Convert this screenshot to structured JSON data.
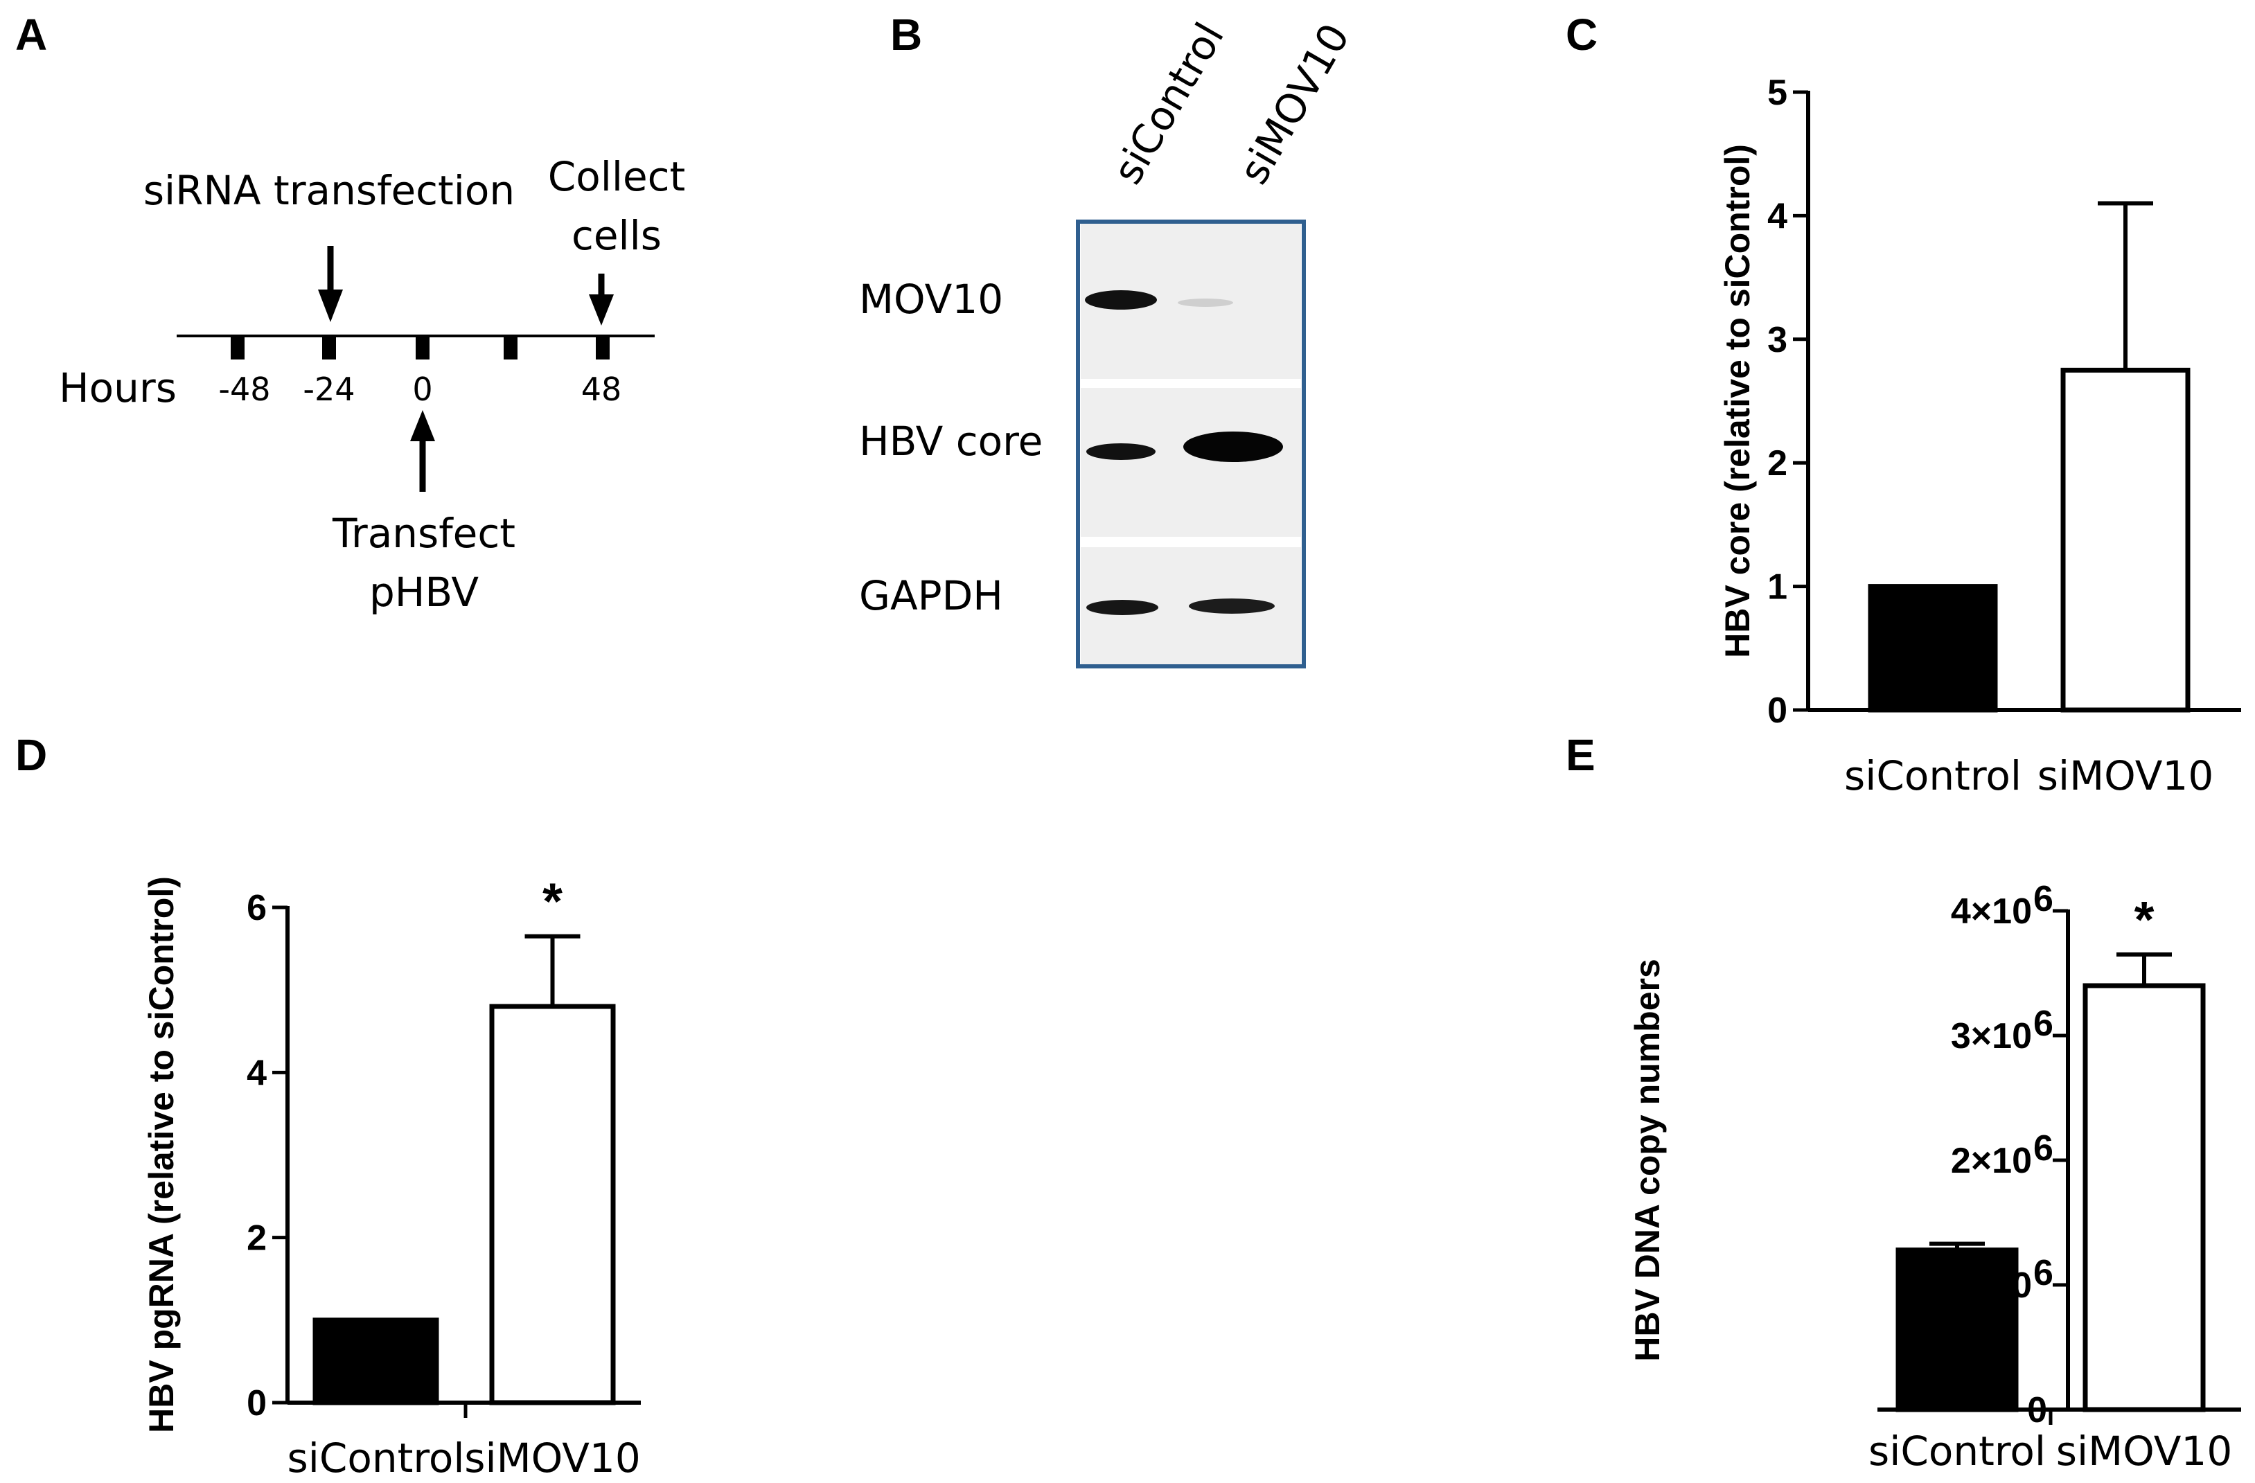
{
  "panels": {
    "A": {
      "label": "A",
      "hours_label": "Hours",
      "tick_labels": [
        "-48",
        "-24",
        "0",
        "",
        "48"
      ],
      "events": {
        "sirna_transfection": "siRNA transfection",
        "collect_line1": "Collect",
        "collect_line2": "cells",
        "transfect_line1": "Transfect",
        "transfect_line2": "pHBV"
      }
    },
    "B": {
      "label": "B",
      "lanes": [
        "siControl",
        "siMOV10"
      ],
      "rows": [
        "MOV10",
        "HBV core",
        "GAPDH"
      ],
      "frame_color": "#2f5f8f"
    },
    "C": {
      "label": "C"
    },
    "D": {
      "label": "D"
    },
    "E": {
      "label": "E"
    }
  },
  "chart_data": [
    {
      "id": "C",
      "type": "bar",
      "categories": [
        "siControl",
        "siMOV10"
      ],
      "values": [
        1.0,
        2.75
      ],
      "errors": [
        0,
        1.35
      ],
      "fill_colors": [
        "#000000",
        "#ffffff"
      ],
      "ylabel": "HBV core (relative to siControl)",
      "ylim": [
        0,
        5
      ],
      "yticks": [
        0,
        1,
        2,
        3,
        4,
        5
      ],
      "ytick_labels": [
        "0",
        "1",
        "2",
        "3",
        "4",
        "5"
      ],
      "significance": [
        "",
        ""
      ]
    },
    {
      "id": "D",
      "type": "bar",
      "categories": [
        "siControl",
        "siMOV10"
      ],
      "values": [
        1.0,
        4.8
      ],
      "errors": [
        0,
        0.85
      ],
      "fill_colors": [
        "#000000",
        "#ffffff"
      ],
      "ylabel": "HBV pgRNA (relative to siControl)",
      "ylim": [
        0,
        6
      ],
      "yticks": [
        0,
        2,
        4,
        6
      ],
      "ytick_labels": [
        "0",
        "2",
        "4",
        "6"
      ],
      "significance": [
        "",
        "*"
      ]
    },
    {
      "id": "E",
      "type": "bar",
      "categories": [
        "siControl",
        "siMOV10"
      ],
      "values": [
        1280000,
        3400000
      ],
      "errors": [
        50000,
        250000
      ],
      "fill_colors": [
        "#000000",
        "#ffffff"
      ],
      "ylabel": "HBV DNA copy numbers",
      "ylim": [
        0,
        4000000
      ],
      "yticks": [
        0,
        1000000,
        2000000,
        3000000,
        4000000
      ],
      "ytick_labels": [
        "0",
        "1×10",
        "2×10",
        "3×10",
        "4×10"
      ],
      "ytick_exponents": [
        "",
        "6",
        "6",
        "6",
        "6"
      ],
      "significance": [
        "",
        "*"
      ]
    }
  ]
}
